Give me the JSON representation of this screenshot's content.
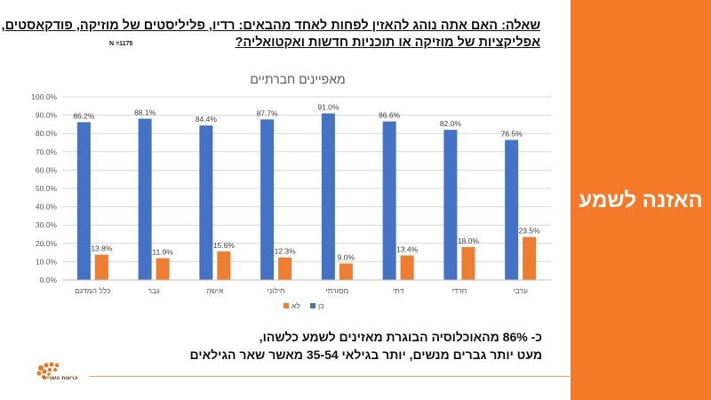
{
  "question": {
    "line1": "שאלה: האם אתה נוהג להאזין לפחות לאחד מהבאים: רדיו, פליליסטים של מוזיקה, פודקאסטים,",
    "line2": "אפליקציות של מוזיקה או תוכניות חדשות ואקטואליה?",
    "sample": "N =1175"
  },
  "side_panel": {
    "title": "האזנה לשמע",
    "color": "#f47a2a"
  },
  "conclusion": {
    "line1": "כ- 86% מהאוכלוסיה הבוגרת מאזינים לשמע כלשהו,",
    "line2": "מעט יותר גברים מנשים, יותר בגילאי 35-54 מאשר שאר הגילאים"
  },
  "logo": {
    "text": "הרשות השנייה"
  },
  "chart_data": {
    "type": "bar",
    "title": "מאפיינים חברתיים",
    "categories": [
      "כלל המדגם",
      "גבר",
      "אישה",
      "חילוני",
      "מסורתי",
      "דתי",
      "חרדי",
      "ערבי"
    ],
    "series": [
      {
        "name": "כן",
        "color": "#4472c4",
        "values": [
          86.2,
          88.1,
          84.4,
          87.7,
          91.0,
          86.6,
          82.0,
          76.5
        ]
      },
      {
        "name": "לא",
        "color": "#ed7d31",
        "values": [
          13.8,
          11.9,
          15.6,
          12.3,
          9.0,
          13.4,
          18.0,
          23.5
        ]
      }
    ],
    "ylim": [
      0,
      100
    ],
    "yticks": [
      "0.0%",
      "10.0%",
      "20.0%",
      "30.0%",
      "40.0%",
      "50.0%",
      "60.0%",
      "70.0%",
      "80.0%",
      "90.0%",
      "100.0%"
    ],
    "value_format": "percent_1dp",
    "legend_position": "bottom",
    "grid": true
  }
}
